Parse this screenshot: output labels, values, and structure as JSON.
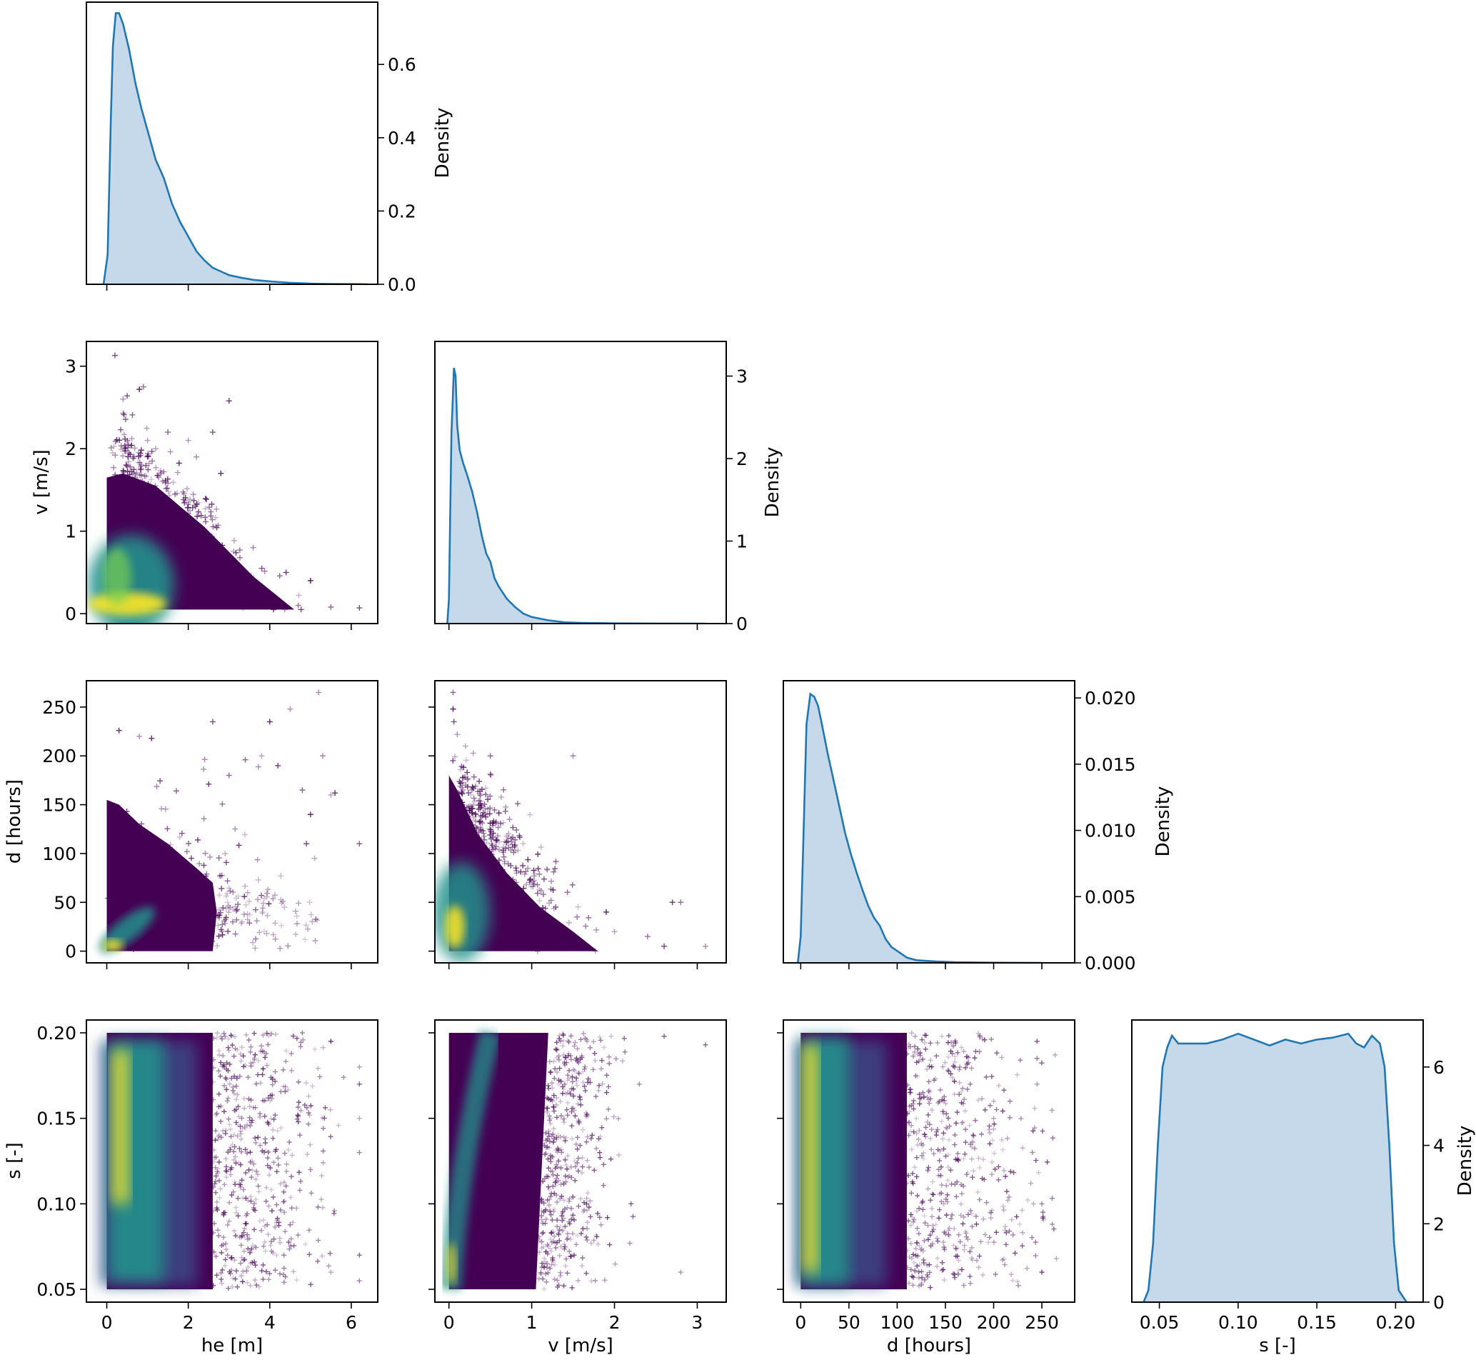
{
  "chart_data": {
    "type": "pairplot",
    "variables": [
      "he [m]",
      "v [m/s]",
      "d [hours]",
      "s [-]"
    ],
    "density_label": "Density",
    "colors": {
      "kde_line": "#1f77b4",
      "kde_fill": "#c6d9ea",
      "scatter_low": "#440154",
      "scatter_mid": "#21918c",
      "scatter_high": "#fde725"
    },
    "diagonal": [
      {
        "variable": "he [m]",
        "type": "kde",
        "x_range": [
          -0.5,
          6.65
        ],
        "y_range": [
          0,
          0.77
        ],
        "x_ticks": [
          0,
          2,
          4,
          6
        ],
        "y_ticks": [
          0.0,
          0.2,
          0.4,
          0.6
        ],
        "y_tick_labels": [
          "0.0",
          "0.2",
          "0.4",
          "0.6"
        ],
        "curve": [
          [
            -0.08,
            0
          ],
          [
            0.02,
            0.08
          ],
          [
            0.1,
            0.45
          ],
          [
            0.15,
            0.65
          ],
          [
            0.22,
            0.74
          ],
          [
            0.3,
            0.74
          ],
          [
            0.4,
            0.71
          ],
          [
            0.55,
            0.64
          ],
          [
            0.7,
            0.55
          ],
          [
            0.85,
            0.48
          ],
          [
            1.0,
            0.42
          ],
          [
            1.2,
            0.34
          ],
          [
            1.4,
            0.29
          ],
          [
            1.6,
            0.22
          ],
          [
            1.8,
            0.17
          ],
          [
            2.0,
            0.13
          ],
          [
            2.2,
            0.09
          ],
          [
            2.4,
            0.065
          ],
          [
            2.6,
            0.045
          ],
          [
            2.8,
            0.035
          ],
          [
            3.0,
            0.025
          ],
          [
            3.3,
            0.018
          ],
          [
            3.6,
            0.012
          ],
          [
            4.0,
            0.008
          ],
          [
            4.5,
            0.004
          ],
          [
            5.0,
            0.002
          ],
          [
            5.5,
            0.001
          ],
          [
            6.0,
            0.0005
          ],
          [
            6.4,
            0
          ]
        ]
      },
      {
        "variable": "v [m/s]",
        "type": "kde",
        "x_range": [
          -0.17,
          3.35
        ],
        "y_range": [
          0,
          3.42
        ],
        "x_ticks": [
          0,
          1,
          2,
          3
        ],
        "y_ticks": [
          0,
          1,
          2,
          3
        ],
        "y_tick_labels": [
          "0",
          "1",
          "2",
          "3"
        ],
        "curve": [
          [
            -0.02,
            0
          ],
          [
            0.0,
            0.3
          ],
          [
            0.03,
            2.3
          ],
          [
            0.06,
            3.1
          ],
          [
            0.08,
            3.0
          ],
          [
            0.1,
            2.4
          ],
          [
            0.13,
            2.1
          ],
          [
            0.17,
            1.95
          ],
          [
            0.22,
            1.8
          ],
          [
            0.28,
            1.6
          ],
          [
            0.34,
            1.35
          ],
          [
            0.4,
            1.05
          ],
          [
            0.45,
            0.85
          ],
          [
            0.5,
            0.75
          ],
          [
            0.55,
            0.55
          ],
          [
            0.6,
            0.45
          ],
          [
            0.7,
            0.3
          ],
          [
            0.8,
            0.2
          ],
          [
            0.9,
            0.12
          ],
          [
            1.0,
            0.08
          ],
          [
            1.2,
            0.04
          ],
          [
            1.4,
            0.015
          ],
          [
            1.6,
            0.008
          ],
          [
            2.0,
            0.003
          ],
          [
            2.5,
            0.001
          ],
          [
            3.1,
            0
          ]
        ]
      },
      {
        "variable": "d [hours]",
        "type": "kde",
        "x_range": [
          -18,
          284
        ],
        "y_range": [
          0,
          0.0213
        ],
        "x_ticks": [
          0,
          50,
          100,
          150,
          200,
          250
        ],
        "y_ticks": [
          0.0,
          0.005,
          0.01,
          0.015,
          0.02
        ],
        "y_tick_labels": [
          "0.000",
          "0.005",
          "0.010",
          "0.015",
          "0.020"
        ],
        "curve": [
          [
            -3,
            0
          ],
          [
            0,
            0.002
          ],
          [
            3,
            0.01
          ],
          [
            6,
            0.018
          ],
          [
            10,
            0.0203
          ],
          [
            14,
            0.0201
          ],
          [
            18,
            0.0194
          ],
          [
            22,
            0.018
          ],
          [
            28,
            0.0158
          ],
          [
            34,
            0.0138
          ],
          [
            40,
            0.0118
          ],
          [
            46,
            0.0098
          ],
          [
            52,
            0.0082
          ],
          [
            58,
            0.0068
          ],
          [
            64,
            0.0055
          ],
          [
            70,
            0.0043
          ],
          [
            76,
            0.0034
          ],
          [
            82,
            0.0028
          ],
          [
            88,
            0.0018
          ],
          [
            94,
            0.0012
          ],
          [
            100,
            0.0009
          ],
          [
            110,
            0.0004
          ],
          [
            120,
            0.0002
          ],
          [
            140,
            0.0001
          ],
          [
            160,
            5e-05
          ],
          [
            200,
            1e-05
          ],
          [
            250,
            0
          ]
        ]
      },
      {
        "variable": "s [-]",
        "type": "kde",
        "x_range": [
          0.0325,
          0.2175
        ],
        "y_range": [
          0,
          7.2
        ],
        "x_ticks": [
          0.05,
          0.1,
          0.15,
          0.2
        ],
        "x_tick_labels": [
          "0.05",
          "0.10",
          "0.15",
          "0.20"
        ],
        "y_ticks": [
          0,
          2,
          4,
          6
        ],
        "y_tick_labels": [
          "0",
          "2",
          "4",
          "6"
        ],
        "curve": [
          [
            0.04,
            0
          ],
          [
            0.043,
            0.3
          ],
          [
            0.046,
            1.5
          ],
          [
            0.049,
            4.0
          ],
          [
            0.052,
            6.0
          ],
          [
            0.055,
            6.5
          ],
          [
            0.058,
            6.8
          ],
          [
            0.062,
            6.6
          ],
          [
            0.07,
            6.6
          ],
          [
            0.08,
            6.6
          ],
          [
            0.09,
            6.7
          ],
          [
            0.1,
            6.85
          ],
          [
            0.11,
            6.7
          ],
          [
            0.12,
            6.55
          ],
          [
            0.13,
            6.7
          ],
          [
            0.14,
            6.6
          ],
          [
            0.15,
            6.7
          ],
          [
            0.16,
            6.75
          ],
          [
            0.17,
            6.85
          ],
          [
            0.175,
            6.6
          ],
          [
            0.18,
            6.5
          ],
          [
            0.185,
            6.8
          ],
          [
            0.19,
            6.6
          ],
          [
            0.193,
            6.0
          ],
          [
            0.196,
            4.0
          ],
          [
            0.199,
            1.5
          ],
          [
            0.202,
            0.3
          ],
          [
            0.207,
            0
          ]
        ]
      }
    ],
    "scatter_panels": [
      {
        "x": "he [m]",
        "y": "v [m/s]",
        "x_range": [
          -0.5,
          6.65
        ],
        "y_range": [
          -0.12,
          3.3
        ],
        "y_ticks": [
          0,
          1,
          2,
          3
        ]
      },
      {
        "x": "he [m]",
        "y": "d [hours]",
        "x_range": [
          -0.5,
          6.65
        ],
        "y_range": [
          -12,
          277
        ],
        "y_ticks": [
          0,
          50,
          100,
          150,
          200,
          250
        ]
      },
      {
        "x": "v [m/s]",
        "y": "d [hours]",
        "x_range": [
          -0.17,
          3.35
        ],
        "y_range": [
          -12,
          277
        ],
        "y_ticks": [
          0,
          50,
          100,
          150,
          200,
          250
        ]
      },
      {
        "x": "he [m]",
        "y": "s [-]",
        "x_range": [
          -0.5,
          6.65
        ],
        "y_range": [
          0.0425,
          0.2075
        ],
        "y_ticks": [
          0.05,
          0.1,
          0.15,
          0.2
        ],
        "y_tick_labels": [
          "0.05",
          "0.10",
          "0.15",
          "0.20"
        ]
      },
      {
        "x": "v [m/s]",
        "y": "s [-]",
        "x_range": [
          -0.17,
          3.35
        ],
        "y_range": [
          0.0425,
          0.2075
        ],
        "y_ticks": [
          0.05,
          0.1,
          0.15,
          0.2
        ],
        "y_tick_labels": [
          "0.05",
          "0.10",
          "0.15",
          "0.20"
        ]
      },
      {
        "x": "d [hours]",
        "y": "s [-]",
        "x_range": [
          -18,
          284
        ],
        "y_range": [
          0.0425,
          0.2075
        ],
        "y_ticks": [
          0.05,
          0.1,
          0.15,
          0.2
        ],
        "y_tick_labels": [
          "0.05",
          "0.10",
          "0.15",
          "0.20"
        ]
      }
    ],
    "bottom_x_tick_labels": {
      "he [m]": [
        "0",
        "2",
        "4",
        "6"
      ],
      "v [m/s]": [
        "0",
        "1",
        "2",
        "3"
      ],
      "d [hours]": [
        "0",
        "50",
        "100",
        "150",
        "200",
        "250"
      ],
      "s [-]": [
        "0.05",
        "0.10",
        "0.15",
        "0.20"
      ]
    },
    "outliers": {
      "he_v": [
        [
          0.2,
          3.13
        ],
        [
          0.4,
          2.6
        ],
        [
          0.8,
          2.72
        ],
        [
          0.9,
          2.75
        ],
        [
          0.5,
          2.64
        ],
        [
          1.5,
          2.2
        ],
        [
          3.0,
          2.58
        ],
        [
          2.6,
          2.2
        ],
        [
          2.0,
          2.1
        ],
        [
          1.0,
          2.1
        ],
        [
          5.0,
          0.4
        ],
        [
          6.2,
          0.07
        ],
        [
          5.5,
          0.08
        ],
        [
          4.7,
          0.1
        ],
        [
          4.4,
          0.5
        ],
        [
          2.2,
          1.9
        ],
        [
          2.8,
          1.7
        ],
        [
          1.2,
          2.0
        ]
      ],
      "he_d": [
        [
          0.3,
          226
        ],
        [
          0.8,
          220
        ],
        [
          1.1,
          218
        ],
        [
          2.6,
          235
        ],
        [
          4.0,
          235
        ],
        [
          4.5,
          248
        ],
        [
          5.2,
          265
        ],
        [
          6.2,
          110
        ],
        [
          5.3,
          200
        ],
        [
          5.5,
          160
        ],
        [
          4.8,
          165
        ],
        [
          4.2,
          190
        ],
        [
          3.8,
          200
        ],
        [
          3.4,
          196
        ],
        [
          3.0,
          180
        ],
        [
          5.0,
          140
        ],
        [
          5.6,
          162
        ],
        [
          4.9,
          110
        ],
        [
          5.1,
          95
        ]
      ],
      "v_d": [
        [
          0.05,
          265
        ],
        [
          0.05,
          248
        ],
        [
          0.06,
          235
        ],
        [
          0.1,
          222
        ],
        [
          0.2,
          210
        ],
        [
          0.5,
          200
        ],
        [
          1.5,
          200
        ],
        [
          3.1,
          5
        ],
        [
          2.7,
          50
        ],
        [
          2.8,
          50
        ],
        [
          2.6,
          5
        ],
        [
          2.4,
          15
        ],
        [
          1.9,
          40
        ],
        [
          2.0,
          20
        ]
      ],
      "d_s": [
        [
          245,
          0.195
        ],
        [
          245,
          0.185
        ],
        [
          245,
          0.17
        ],
        [
          200,
          0.16
        ],
        [
          200,
          0.15
        ],
        [
          265,
          0.068
        ],
        [
          250,
          0.1
        ],
        [
          250,
          0.06
        ]
      ],
      "v_s": [
        [
          2.6,
          0.198
        ],
        [
          3.1,
          0.193
        ],
        [
          2.3,
          0.17
        ],
        [
          2.8,
          0.06
        ],
        [
          2.2,
          0.1
        ]
      ],
      "he_s": [
        [
          6.2,
          0.18
        ],
        [
          6.2,
          0.17
        ],
        [
          6.2,
          0.15
        ],
        [
          6.2,
          0.13
        ],
        [
          6.2,
          0.07
        ],
        [
          6.2,
          0.055
        ],
        [
          5.5,
          0.195
        ],
        [
          5.5,
          0.06
        ],
        [
          5.0,
          0.12
        ],
        [
          4.8,
          0.2
        ]
      ]
    }
  }
}
